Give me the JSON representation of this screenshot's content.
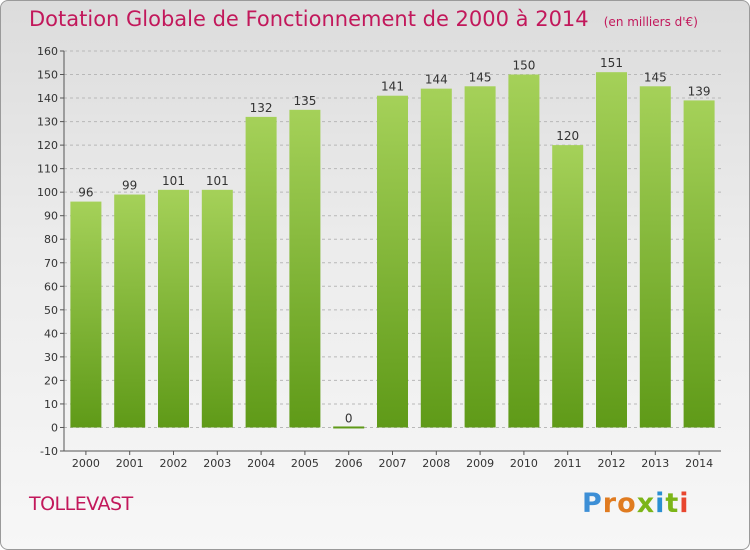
{
  "title": "Dotation Globale de Fonctionnement de 2000 à 2014",
  "unit_note": "(en milliers d'€)",
  "commune": "TOLLEVAST",
  "logo_text": "Proxiti",
  "colors": {
    "bar_light": "#a5d159",
    "bar_dark": "#5f9a18",
    "title": "#c2185b",
    "grid": "#b8b8b8"
  },
  "chart_data": {
    "type": "bar",
    "title": "Dotation Globale de Fonctionnement de 2000 à 2014",
    "subtitle": "(en milliers d'€)",
    "xlabel": "",
    "ylabel": "",
    "categories": [
      "2000",
      "2001",
      "2002",
      "2003",
      "2004",
      "2005",
      "2006",
      "2007",
      "2008",
      "2009",
      "2010",
      "2011",
      "2012",
      "2013",
      "2014"
    ],
    "values": [
      96,
      99,
      101,
      101,
      132,
      135,
      0,
      141,
      144,
      145,
      150,
      120,
      151,
      145,
      139
    ],
    "ylim": [
      -10,
      160
    ],
    "yticks": [
      -10,
      0,
      10,
      20,
      30,
      40,
      50,
      60,
      70,
      80,
      90,
      100,
      110,
      120,
      130,
      140,
      150,
      160
    ],
    "grid": true,
    "legend": "none"
  }
}
